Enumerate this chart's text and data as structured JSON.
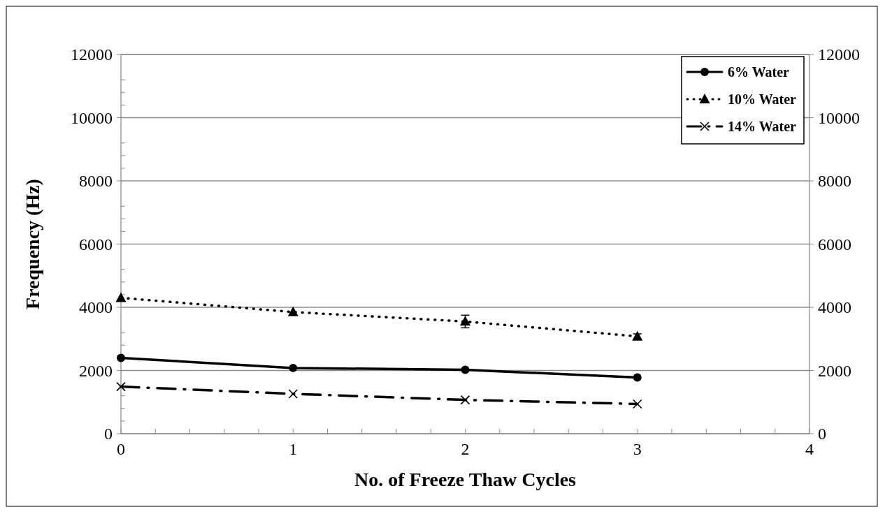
{
  "chart_data": {
    "type": "line",
    "xlabel": "No. of Freeze Thaw Cycles",
    "ylabel": "Frequency (Hz)",
    "x": [
      0,
      1,
      2,
      3
    ],
    "series": [
      {
        "name": "6% Water",
        "color": "#000000",
        "values": [
          2400,
          2080,
          2020,
          1780
        ],
        "marker": "circle",
        "line_style": "solid"
      },
      {
        "name": "10% Water",
        "color": "#000000",
        "values": [
          4300,
          3850,
          3550,
          3080
        ],
        "marker": "triangle",
        "line_style": "dotted",
        "errors": [
          null,
          null,
          200,
          80
        ]
      },
      {
        "name": "14% Water",
        "color": "#000000",
        "values": [
          1490,
          1260,
          1070,
          940
        ],
        "marker": "cross",
        "line_style": "dashed"
      }
    ],
    "xlim": [
      0,
      4
    ],
    "xticks": [
      0,
      {
        "value": 0.2,
        "label": null
      },
      {
        "value": 0.4,
        "label": null
      },
      {
        "value": 0.6,
        "label": null
      },
      {
        "value": 0.8,
        "label": null
      },
      1,
      {
        "value": 1.2,
        "label": null
      },
      {
        "value": 1.4,
        "label": null
      },
      {
        "value": 1.6,
        "label": null
      },
      {
        "value": 1.8,
        "label": null
      },
      2,
      {
        "value": 2.2,
        "label": null
      },
      {
        "value": 2.4,
        "label": null
      },
      {
        "value": 2.6,
        "label": null
      },
      {
        "value": 2.8,
        "label": null
      },
      3,
      {
        "value": 3.2,
        "label": null
      },
      {
        "value": 3.4,
        "label": null
      },
      {
        "value": 3.6,
        "label": null
      },
      {
        "value": 3.8,
        "label": null
      },
      4
    ],
    "ylim": [
      0,
      12000
    ],
    "yticks": [
      0,
      2000,
      4000,
      6000,
      8000,
      10000,
      12000
    ],
    "y2lim": [
      0,
      12000
    ],
    "y2ticks": [
      0,
      2000,
      4000,
      6000,
      8000,
      10000,
      12000
    ],
    "grid": "y",
    "legend": "top right"
  }
}
